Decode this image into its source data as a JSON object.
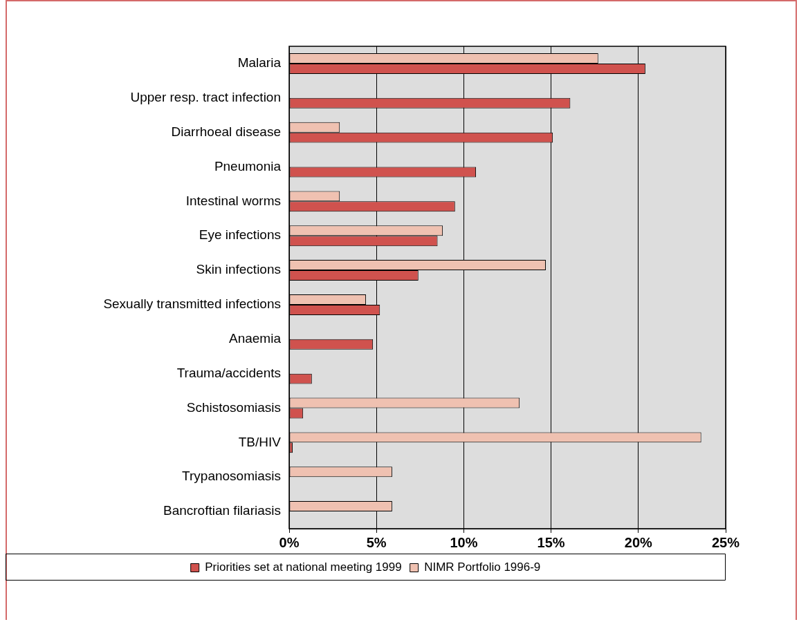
{
  "chart_data": {
    "type": "bar",
    "orientation": "horizontal",
    "categories": [
      "Malaria",
      "Upper resp. tract infection",
      "Diarrhoeal disease",
      "Pneumonia",
      "Intestinal worms",
      "Eye infections",
      "Skin infections",
      "Sexually transmitted infections",
      "Anaemia",
      "Trauma/accidents",
      "Schistosomiasis",
      "TB/HIV",
      "Trypanosomiasis",
      "Bancroftian filariasis"
    ],
    "series": [
      {
        "name": "NIMR Portfolio 1996-9",
        "color": "#efc1b1",
        "values": [
          17.7,
          null,
          2.9,
          null,
          2.9,
          8.8,
          14.7,
          4.4,
          null,
          null,
          13.2,
          23.6,
          5.9,
          5.9
        ]
      },
      {
        "name": "Priorities set at national meeting 1999",
        "color": "#d0524e",
        "values": [
          20.4,
          16.1,
          15.1,
          10.7,
          9.5,
          8.5,
          7.4,
          5.2,
          4.8,
          1.3,
          0.8,
          0.2,
          null,
          null
        ]
      }
    ],
    "xlim": [
      0,
      25
    ],
    "xticks": [
      {
        "value": 0,
        "label": "0%"
      },
      {
        "value": 5,
        "label": "5%"
      },
      {
        "value": 10,
        "label": "10%"
      },
      {
        "value": 15,
        "label": "15%"
      },
      {
        "value": 20,
        "label": "20%"
      },
      {
        "value": 25,
        "label": "25%"
      }
    ],
    "grid": "x",
    "legend": "bottom"
  }
}
